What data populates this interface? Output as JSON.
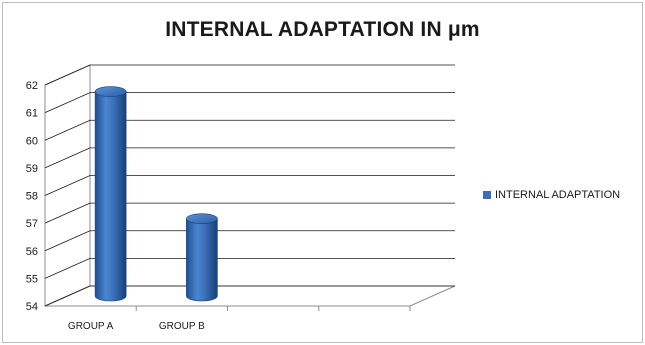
{
  "chart_data": {
    "type": "bar",
    "title": "INTERNAL ADAPTATION IN μm",
    "categories": [
      "GROUP A",
      "GROUP B"
    ],
    "series": [
      {
        "name": "INTERNAL ADAPTATION",
        "values": [
          61.4,
          56.8
        ],
        "color": "#3a6fb8"
      }
    ],
    "xlabel": "",
    "ylabel": "",
    "ylim": [
      54,
      62
    ],
    "yticks": [
      "54",
      "55",
      "56",
      "57",
      "58",
      "59",
      "60",
      "61",
      "62"
    ],
    "grid": true,
    "legend": "right",
    "chart_style": "3d-cylinder"
  }
}
